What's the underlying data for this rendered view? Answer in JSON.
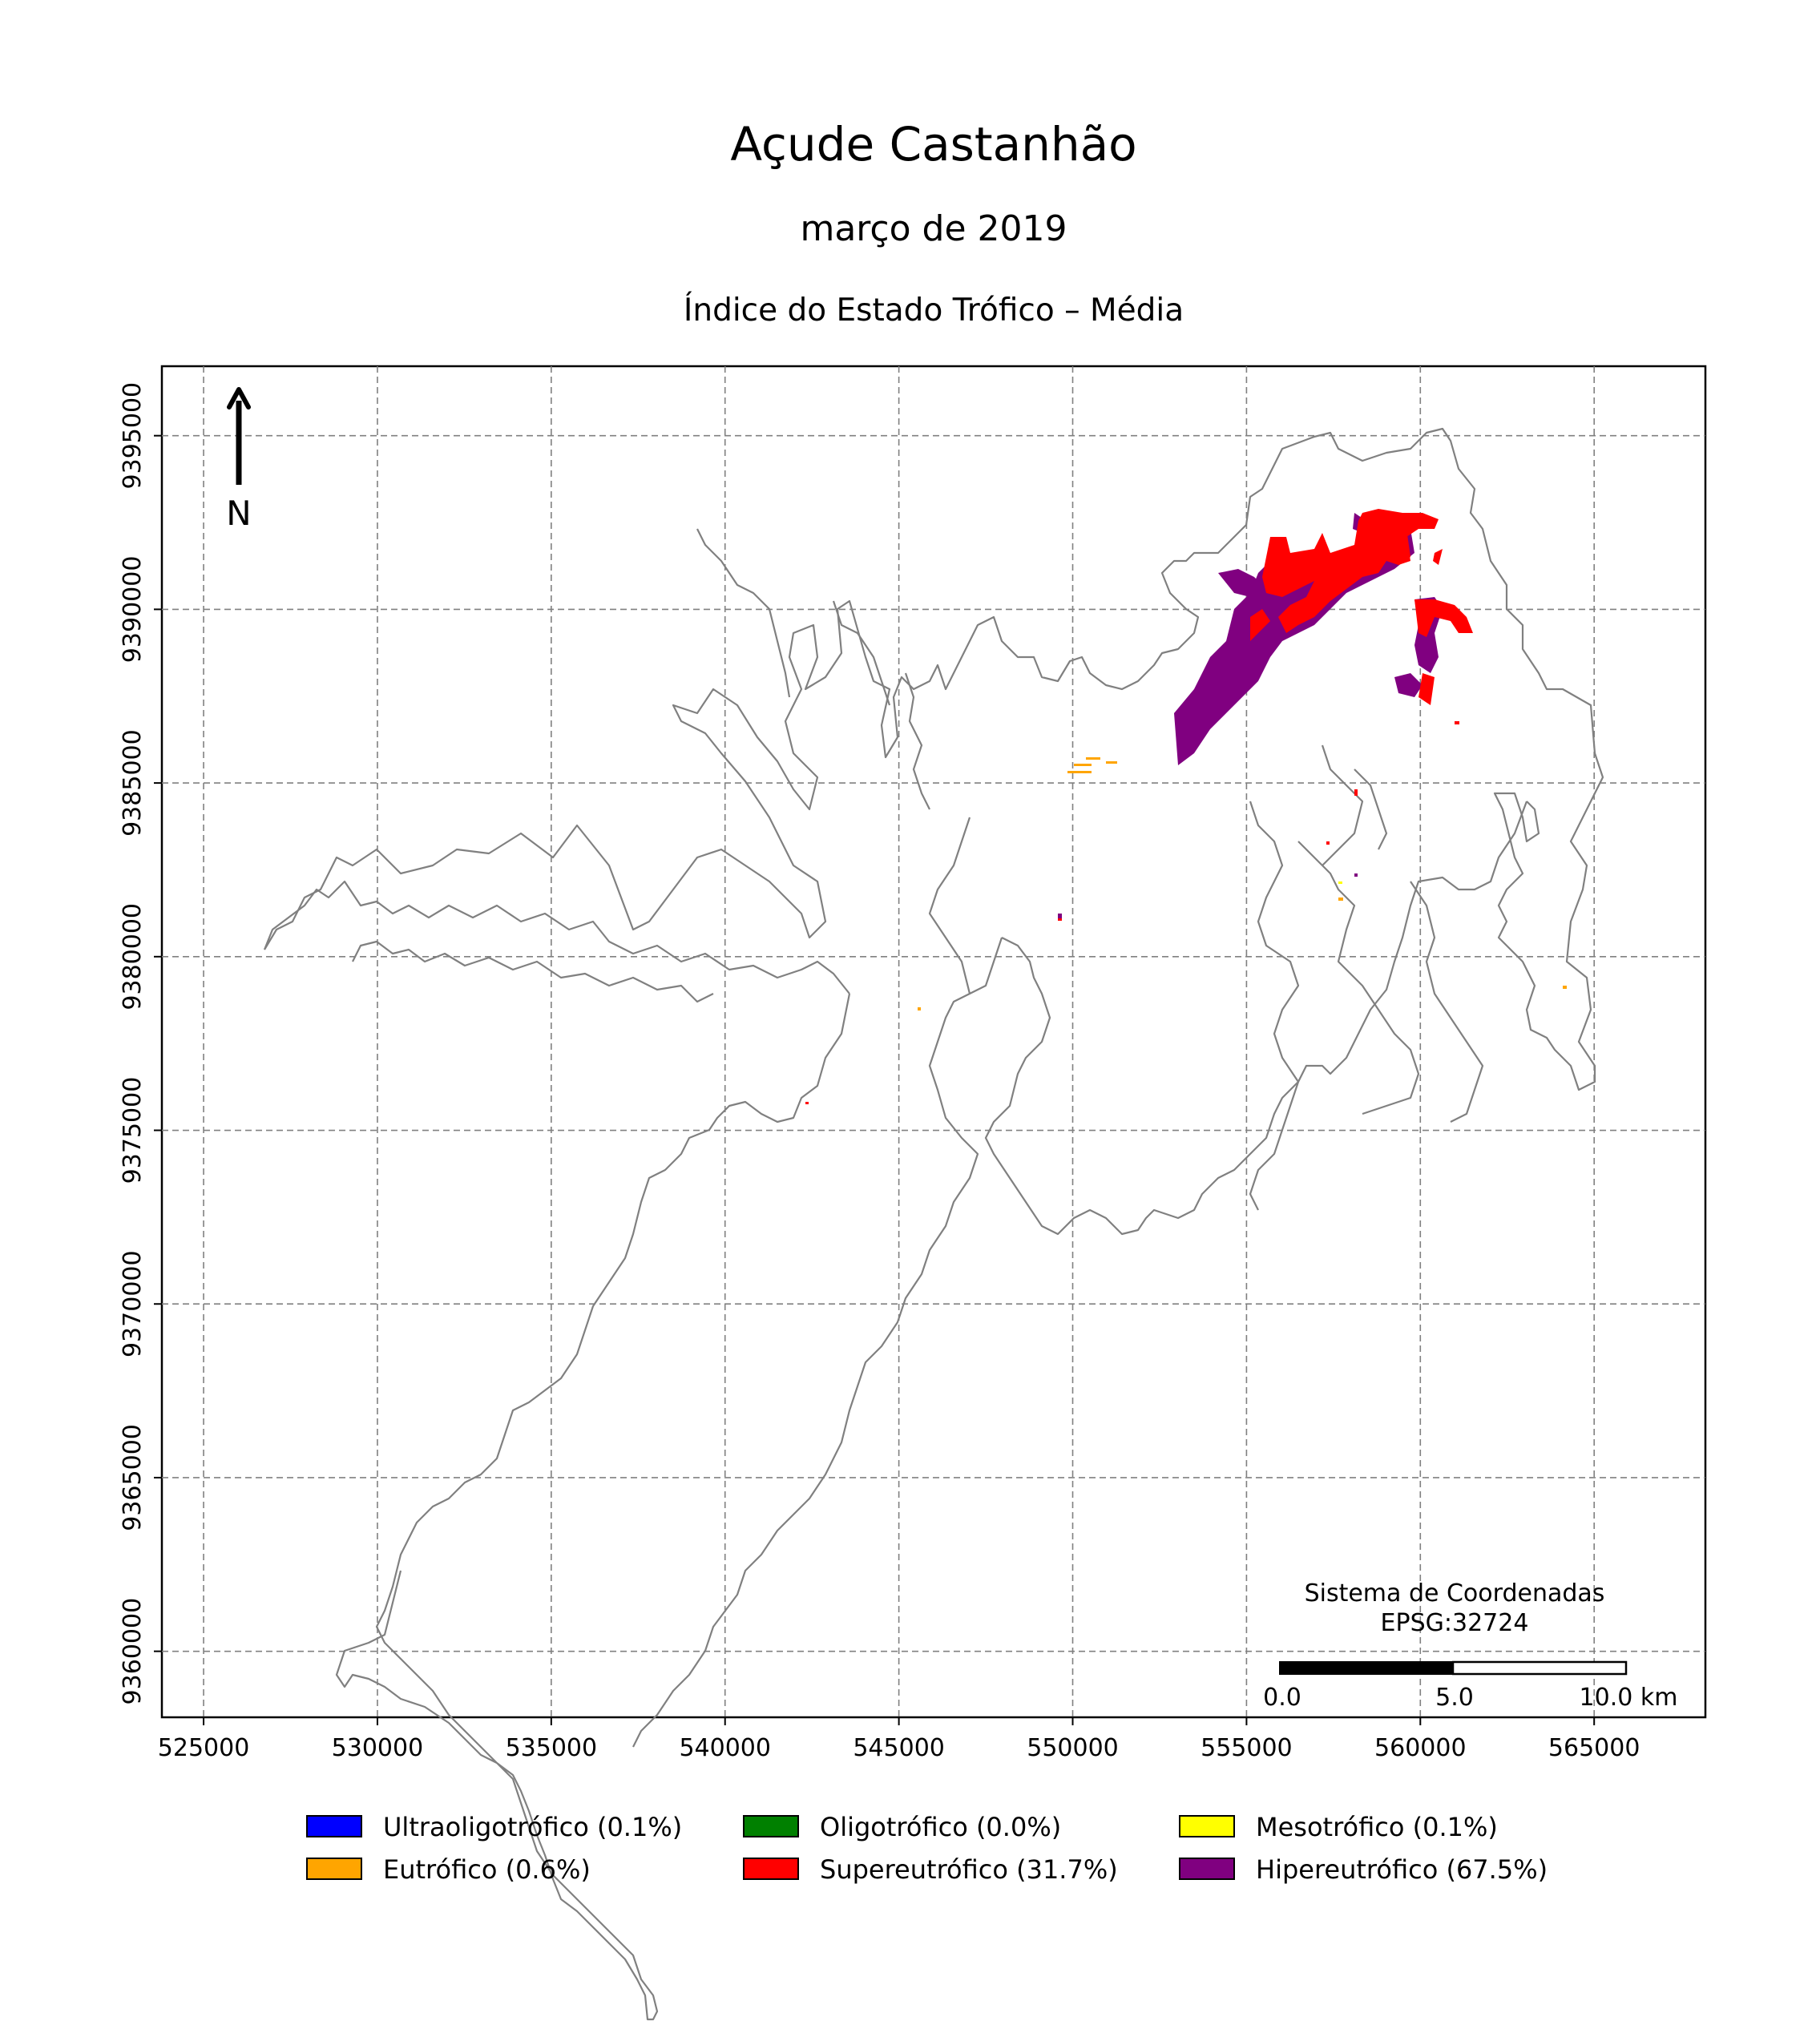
{
  "title": "Açude Castanhão",
  "subtitle": "março de 2019",
  "index_title": "Índice do Estado Trófico – Média",
  "north_label": "N",
  "crs": {
    "line1": "Sistema de Coordenadas",
    "line2": "EPSG:32724"
  },
  "scalebar": {
    "labels": [
      "0.0",
      "5.0",
      "10.0 km"
    ]
  },
  "map_data": {
    "type": "choropleth-raster",
    "x_ticks": [
      525000,
      530000,
      535000,
      540000,
      545000,
      550000,
      555000,
      560000,
      565000
    ],
    "y_ticks": [
      9360000,
      9365000,
      9370000,
      9375000,
      9380000,
      9385000,
      9390000,
      9395000
    ],
    "x_range": [
      523800,
      568200
    ],
    "y_range": [
      9358100,
      9397000
    ],
    "grid": true
  },
  "legend": [
    {
      "label": "Ultraoligotrófico (0.1%)",
      "color": "#0000ff",
      "percent": 0.1
    },
    {
      "label": "Oligotrófico (0.0%)",
      "color": "#008000",
      "percent": 0.0
    },
    {
      "label": "Mesotrófico (0.1%)",
      "color": "#ffff00",
      "percent": 0.1
    },
    {
      "label": "Eutrófico (0.6%)",
      "color": "#ffa500",
      "percent": 0.6
    },
    {
      "label": "Supereutrófico (31.7%)",
      "color": "#ff0000",
      "percent": 31.7
    },
    {
      "label": "Hipereutrófico (67.5%)",
      "color": "#800080",
      "percent": 67.5
    }
  ]
}
